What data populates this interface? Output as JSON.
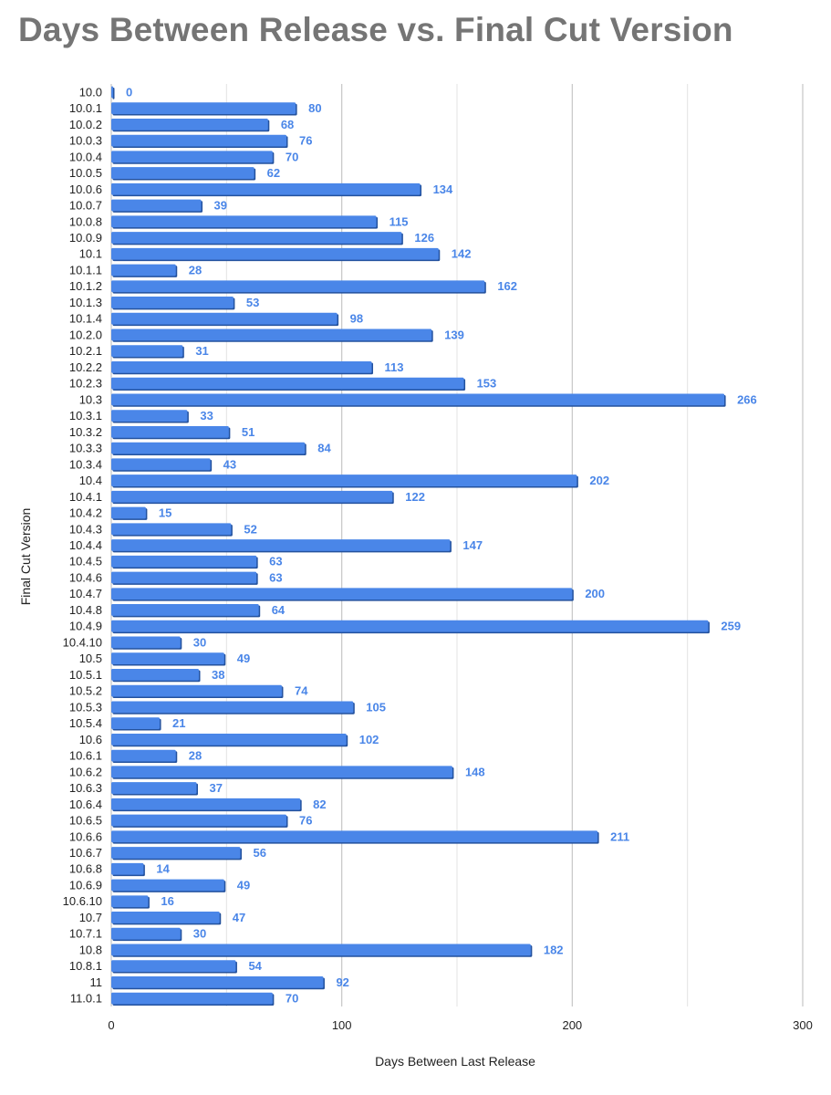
{
  "chart_data": {
    "type": "bar",
    "orientation": "horizontal",
    "title": "Days Between Release vs. Final Cut Version",
    "xlabel": "Days Between Last Release",
    "ylabel": "Final Cut Version",
    "xlim": [
      0,
      300
    ],
    "xticks": [
      0,
      100,
      200,
      300
    ],
    "grid": true,
    "bar_color": "#4a86e8",
    "label_color": "#4a86e8",
    "categories": [
      "10.0",
      "10.0.1",
      "10.0.2",
      "10.0.3",
      "10.0.4",
      "10.0.5",
      "10.0.6",
      "10.0.7",
      "10.0.8",
      "10.0.9",
      "10.1",
      "10.1.1",
      "10.1.2",
      "10.1.3",
      "10.1.4",
      "10.2.0",
      "10.2.1",
      "10.2.2",
      "10.2.3",
      "10.3",
      "10.3.1",
      "10.3.2",
      "10.3.3",
      "10.3.4",
      "10.4",
      "10.4.1",
      "10.4.2",
      "10.4.3",
      "10.4.4",
      "10.4.5",
      "10.4.6",
      "10.4.7",
      "10.4.8",
      "10.4.9",
      "10.4.10",
      "10.5",
      "10.5.1",
      "10.5.2",
      "10.5.3",
      "10.5.4",
      "10.6",
      "10.6.1",
      "10.6.2",
      "10.6.3",
      "10.6.4",
      "10.6.5",
      "10.6.6",
      "10.6.7",
      "10.6.8",
      "10.6.9",
      "10.6.10",
      "10.7",
      "10.7.1",
      "10.8",
      "10.8.1",
      "11",
      "11.0.1"
    ],
    "values": [
      0,
      80,
      68,
      76,
      70,
      62,
      134,
      39,
      115,
      126,
      142,
      28,
      162,
      53,
      98,
      139,
      31,
      113,
      153,
      266,
      33,
      51,
      84,
      43,
      202,
      122,
      15,
      52,
      147,
      63,
      63,
      200,
      64,
      259,
      30,
      49,
      38,
      74,
      105,
      21,
      102,
      28,
      148,
      37,
      82,
      76,
      211,
      56,
      14,
      49,
      16,
      47,
      30,
      182,
      54,
      92,
      70
    ]
  }
}
